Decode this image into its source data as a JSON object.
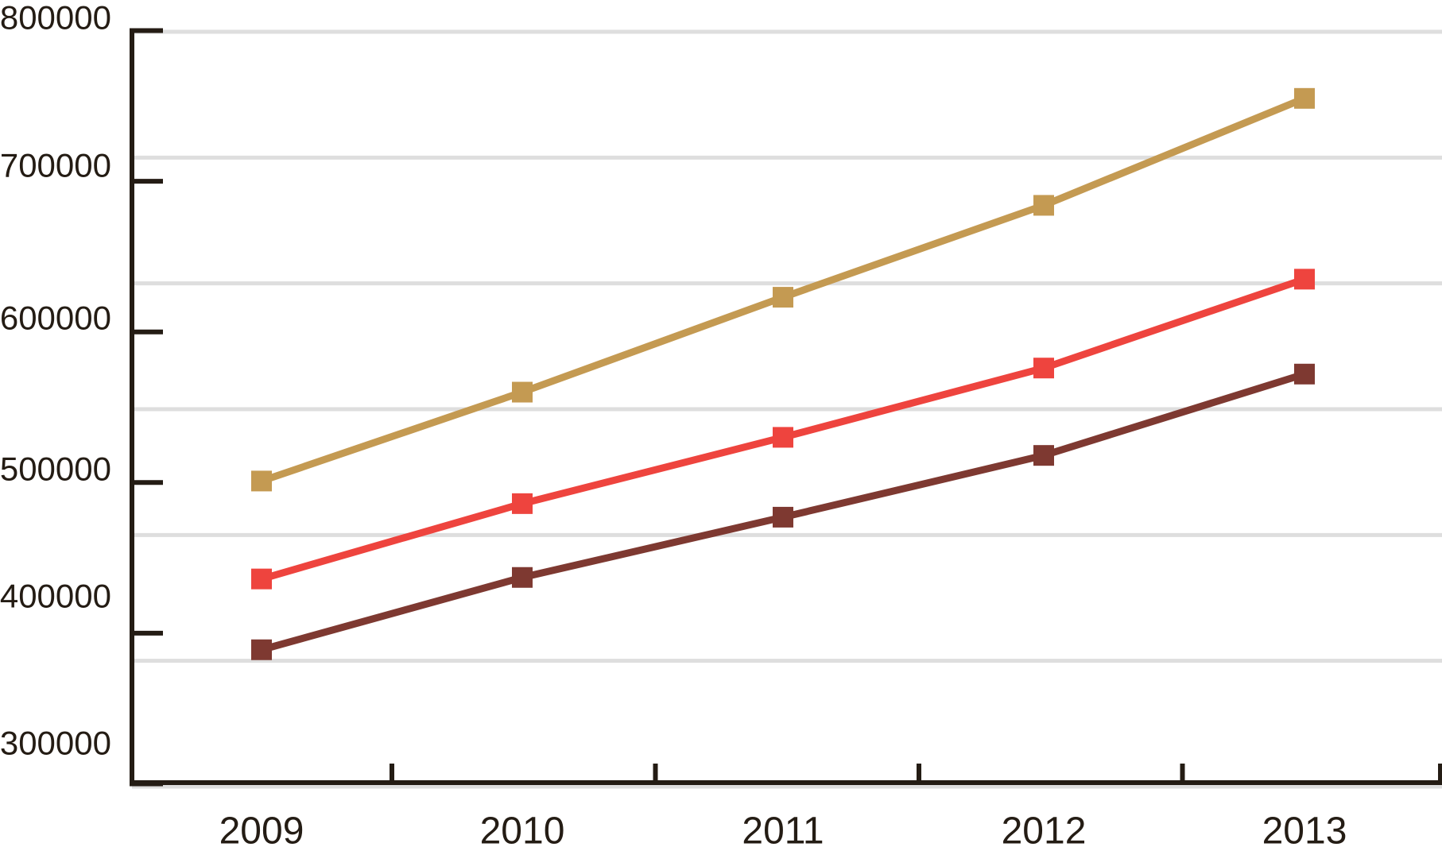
{
  "chart_data": {
    "type": "line",
    "title": "",
    "xlabel": "",
    "ylabel": "",
    "categories": [
      "2009",
      "2010",
      "2011",
      "2012",
      "2013"
    ],
    "series": [
      {
        "name": "tan-gold-line",
        "color": "#c49a52",
        "values": [
          501000,
          560000,
          623000,
          684000,
          755000
        ]
      },
      {
        "name": "bright-red-line",
        "color": "#ee443e",
        "values": [
          436000,
          486000,
          530000,
          576000,
          635000
        ]
      },
      {
        "name": "dark-brown-line",
        "color": "#7e3931",
        "values": [
          389000,
          437000,
          477000,
          518000,
          572000
        ]
      }
    ],
    "ylim": [
      300000,
      800000
    ],
    "y_tick_values": [
      800000,
      700000,
      600000,
      500000,
      400000,
      300000
    ],
    "y_tick_labels": [
      "800000",
      "700000",
      "600000",
      "500000",
      "400000",
      "300000"
    ],
    "marker": "square",
    "legend": "none",
    "grid": "horizontal",
    "gridline_count": 7,
    "colors": {
      "grid": "#dedede",
      "axis": "#241c14",
      "text": "#241c14",
      "background": "#ffffff"
    }
  }
}
